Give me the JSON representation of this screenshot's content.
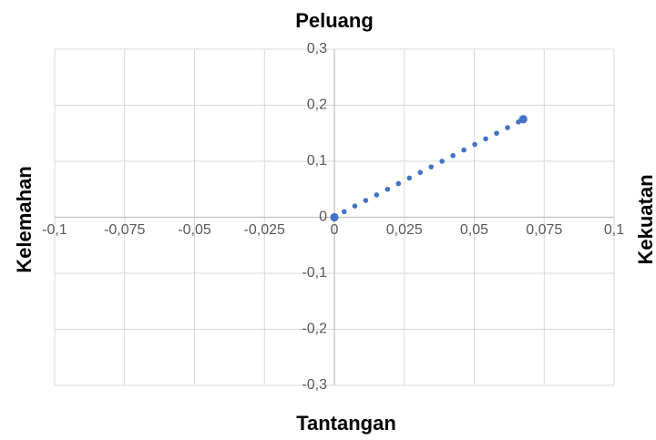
{
  "chart_data": {
    "type": "scatter",
    "title": "",
    "labels": {
      "top": "Peluang",
      "bottom": "Tantangan",
      "left": "Kelemahan",
      "right": "Kekuatan"
    },
    "xlim": [
      -0.1,
      0.1
    ],
    "ylim": [
      -0.3,
      0.3
    ],
    "x_ticks": [
      "-0,1",
      "-0,075",
      "-0,05",
      "-0,025",
      "0",
      "0,025",
      "0,05",
      "0,075",
      "0,1"
    ],
    "y_ticks": [
      "0,3",
      "0,2",
      "0,1",
      "0",
      "-0,1",
      "-0,2",
      "-0,3"
    ],
    "grid": true,
    "marker_color": "#4472C4",
    "series": [
      {
        "points": [
          {
            "x": 0.0035,
            "y": 0.01
          },
          {
            "x": 0.0073,
            "y": 0.02
          },
          {
            "x": 0.0112,
            "y": 0.03
          },
          {
            "x": 0.0151,
            "y": 0.04
          },
          {
            "x": 0.019,
            "y": 0.05
          },
          {
            "x": 0.0229,
            "y": 0.06
          },
          {
            "x": 0.0268,
            "y": 0.07
          },
          {
            "x": 0.0307,
            "y": 0.08
          },
          {
            "x": 0.0346,
            "y": 0.09
          },
          {
            "x": 0.0385,
            "y": 0.1
          },
          {
            "x": 0.0424,
            "y": 0.11
          },
          {
            "x": 0.0463,
            "y": 0.12
          },
          {
            "x": 0.0502,
            "y": 0.13
          },
          {
            "x": 0.0541,
            "y": 0.14
          },
          {
            "x": 0.058,
            "y": 0.15
          },
          {
            "x": 0.0619,
            "y": 0.16
          },
          {
            "x": 0.0658,
            "y": 0.17
          },
          {
            "x": 0.0675,
            "y": 0.175
          }
        ],
        "endpoints": [
          {
            "x": 0.0,
            "y": 0.0
          },
          {
            "x": 0.0675,
            "y": 0.175
          }
        ]
      }
    ]
  }
}
